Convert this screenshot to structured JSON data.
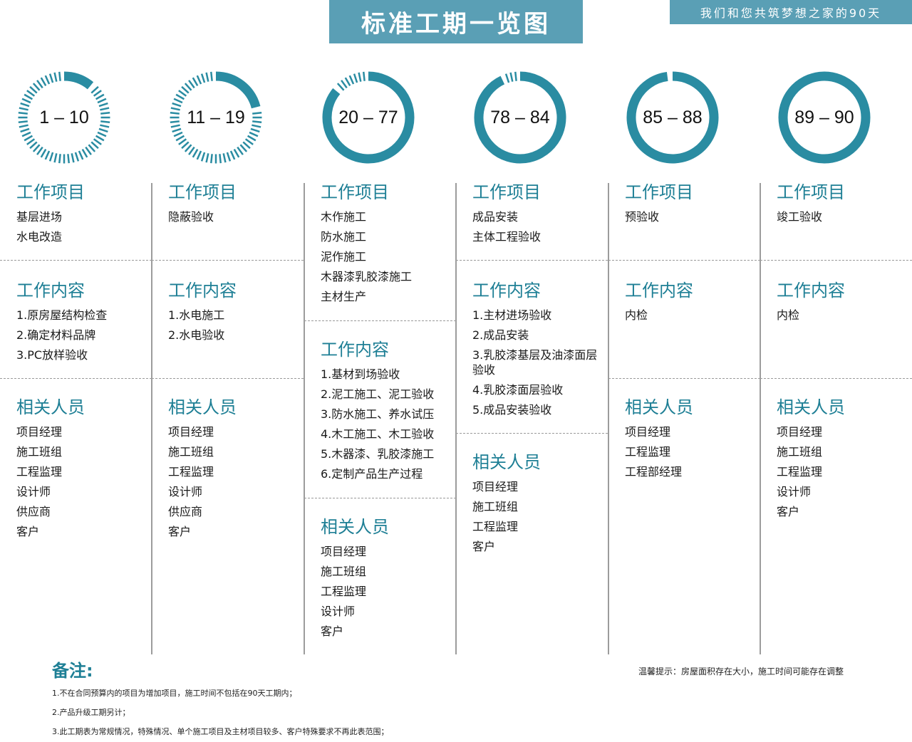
{
  "header": {
    "title": "标准工期一览图",
    "slogan": "我们和您共筑梦想之家的90天"
  },
  "colors": {
    "accent": "#1e7f95",
    "title_bg": "#5a9fb5",
    "ring": "#2a8ca2"
  },
  "phases": [
    {
      "range": "1 – 10",
      "progress": 0.11,
      "items_title": "工作项目",
      "items": [
        "基层进场",
        "水电改造"
      ],
      "content_title": "工作内容",
      "content": [
        "1.原房屋结构检查",
        "2.确定材料品牌",
        "3.PC放样验收"
      ],
      "people_title": "相关人员",
      "people": [
        "项目经理",
        "施工班组",
        "工程监理",
        "设计师",
        "供应商",
        "客户"
      ]
    },
    {
      "range": "11 – 19",
      "progress": 0.21,
      "items_title": "工作项目",
      "items": [
        "隐蔽验收"
      ],
      "content_title": "工作内容",
      "content": [
        "1.水电施工",
        "2.水电验收"
      ],
      "people_title": "相关人员",
      "people": [
        "项目经理",
        "施工班组",
        "工程监理",
        "设计师",
        "供应商",
        "客户"
      ]
    },
    {
      "range": "20 – 77",
      "progress": 0.86,
      "items_title": "工作项目",
      "items": [
        "木作施工",
        "防水施工",
        "泥作施工",
        "木器漆乳胶漆施工",
        "主材生产"
      ],
      "content_title": "工作内容",
      "content": [
        "1.基材到场验收",
        "2.泥工施工、泥工验收",
        "3.防水施工、养水试压",
        "4.木工施工、木工验收",
        "5.木器漆、乳胶漆施工",
        "6.定制产品生产过程"
      ],
      "people_title": "相关人员",
      "people": [
        "项目经理",
        "施工班组",
        "工程监理",
        "设计师",
        "客户"
      ]
    },
    {
      "range": "78 – 84",
      "progress": 0.93,
      "items_title": "工作项目",
      "items": [
        "成品安装",
        "主体工程验收"
      ],
      "content_title": "工作内容",
      "content": [
        "1.主材进场验收",
        "2.成品安装",
        "3.乳胶漆基层及油漆面层验收",
        "4.乳胶漆面层验收",
        "5.成品安装验收"
      ],
      "people_title": "相关人员",
      "people": [
        "项目经理",
        "施工班组",
        "工程监理",
        "客户"
      ]
    },
    {
      "range": "85 – 88",
      "progress": 0.98,
      "items_title": "工作项目",
      "items": [
        "预验收"
      ],
      "content_title": "工作内容",
      "content": [
        "内检"
      ],
      "people_title": "相关人员",
      "people": [
        "项目经理",
        "工程监理",
        "工程部经理"
      ]
    },
    {
      "range": "89 – 90",
      "progress": 1.0,
      "items_title": "工作项目",
      "items": [
        "竣工验收"
      ],
      "content_title": "工作内容",
      "content": [
        "内检"
      ],
      "people_title": "相关人员",
      "people": [
        "项目经理",
        "施工班组",
        "工程监理",
        "设计师",
        "客户"
      ]
    }
  ],
  "notes": {
    "title": "备注:",
    "items": [
      "1.不在合同预算内的项目为增加项目，施工时间不包括在90天工期内；",
      "2.产品升级工期另计；",
      "3.此工期表为常规情况，特殊情况、单个施工项目及主材项目较多、客户特殊要求不再此表范围；"
    ],
    "tip": "温馨提示：房屋面积存在大小，施工时间可能存在调整"
  }
}
